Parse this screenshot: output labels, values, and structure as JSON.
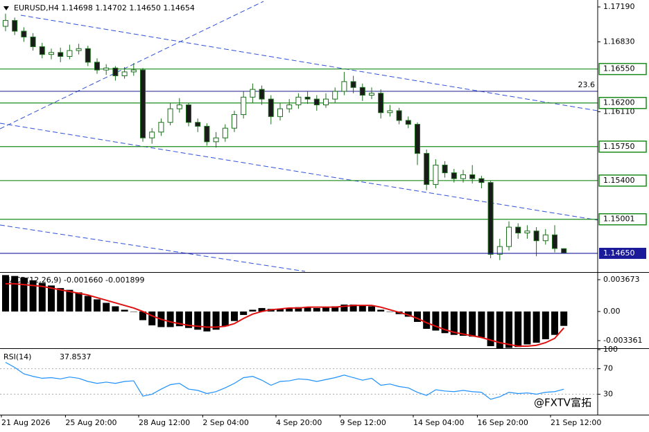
{
  "chart_data": [
    {
      "type": "candlestick",
      "title": "EURUSD,H4  1.14698 1.14702 1.14650 1.14654",
      "categories": [
        "21 Aug 2026",
        null,
        null,
        null,
        null,
        null,
        null,
        "25 Aug 20:00",
        null,
        null,
        null,
        null,
        null,
        null,
        null,
        "28 Aug 12:00",
        null,
        null,
        null,
        null,
        null,
        null,
        "2 Sep 04:00",
        null,
        null,
        null,
        null,
        null,
        null,
        null,
        "4 Sep 20:00",
        null,
        null,
        null,
        null,
        null,
        null,
        "9 Sep 12:00",
        null,
        null,
        null,
        null,
        null,
        null,
        null,
        "14 Sep 04:00",
        null,
        null,
        null,
        null,
        null,
        null,
        "16 Sep 20:00",
        null,
        null,
        null,
        null,
        null,
        null,
        null,
        "21 Sep 12:00",
        null
      ],
      "open": [
        1.1699,
        1.1705,
        1.1694,
        1.1688,
        1.1678,
        1.167,
        1.1672,
        1.1668,
        1.1674,
        1.1676,
        1.1662,
        1.1654,
        1.1656,
        1.1648,
        1.1652,
        1.1654,
        1.1584,
        1.159,
        1.16,
        1.1614,
        1.1618,
        1.16,
        1.1596,
        1.158,
        1.1584,
        1.1594,
        1.1608,
        1.1626,
        1.1634,
        1.1624,
        1.1606,
        1.1614,
        1.1618,
        1.1626,
        1.1624,
        1.1618,
        1.1624,
        1.1632,
        1.1642,
        1.1636,
        1.1628,
        1.163,
        1.161,
        1.1612,
        1.1602,
        1.1598,
        1.1568,
        1.1536,
        1.1556,
        1.1548,
        1.1542,
        1.1546,
        1.1542,
        1.1538,
        1.1464,
        1.1472,
        1.1492,
        1.1486,
        1.1488,
        1.1478,
        1.1484,
        1.14698
      ],
      "high": [
        1.1712,
        1.1708,
        1.1698,
        1.1692,
        1.1682,
        1.1676,
        1.1677,
        1.168,
        1.1681,
        1.1679,
        1.1666,
        1.166,
        1.1658,
        1.1657,
        1.1661,
        1.1656,
        1.1594,
        1.1604,
        1.162,
        1.1625,
        1.162,
        1.1604,
        1.1599,
        1.159,
        1.1598,
        1.1612,
        1.1632,
        1.164,
        1.1638,
        1.1628,
        1.162,
        1.1624,
        1.163,
        1.1632,
        1.1628,
        1.163,
        1.1636,
        1.1652,
        1.1648,
        1.164,
        1.1636,
        1.1634,
        1.1618,
        1.1615,
        1.1606,
        1.16,
        1.1572,
        1.1562,
        1.156,
        1.1552,
        1.1551,
        1.1556,
        1.1545,
        1.154,
        1.148,
        1.1498,
        1.1496,
        1.1494,
        1.1492,
        1.149,
        1.1494,
        1.14702
      ],
      "low": [
        1.1694,
        1.169,
        1.1683,
        1.1674,
        1.1666,
        1.1665,
        1.1662,
        1.1665,
        1.167,
        1.1658,
        1.165,
        1.1649,
        1.1643,
        1.1645,
        1.1648,
        1.158,
        1.1578,
        1.1586,
        1.1597,
        1.161,
        1.1596,
        1.159,
        1.1576,
        1.1574,
        1.158,
        1.159,
        1.1604,
        1.162,
        1.1618,
        1.1598,
        1.1602,
        1.161,
        1.1614,
        1.1619,
        1.1612,
        1.1615,
        1.162,
        1.1628,
        1.163,
        1.1622,
        1.1624,
        1.1604,
        1.1606,
        1.1598,
        1.1594,
        1.1556,
        1.153,
        1.1532,
        1.1543,
        1.1538,
        1.1538,
        1.1537,
        1.1532,
        1.146,
        1.1458,
        1.1468,
        1.148,
        1.148,
        1.1462,
        1.1474,
        1.1466,
        1.1465
      ],
      "close": [
        1.1705,
        1.1694,
        1.1688,
        1.1678,
        1.167,
        1.1672,
        1.1668,
        1.1674,
        1.1676,
        1.1662,
        1.1654,
        1.1656,
        1.1648,
        1.1652,
        1.1654,
        1.1584,
        1.159,
        1.16,
        1.1614,
        1.1618,
        1.16,
        1.1596,
        1.158,
        1.1584,
        1.1594,
        1.1608,
        1.1626,
        1.1634,
        1.1624,
        1.1606,
        1.1614,
        1.1618,
        1.1626,
        1.1624,
        1.1618,
        1.1624,
        1.1632,
        1.1642,
        1.1636,
        1.1628,
        1.163,
        1.161,
        1.1612,
        1.1602,
        1.1598,
        1.1568,
        1.1536,
        1.1556,
        1.1548,
        1.1542,
        1.1546,
        1.1542,
        1.1538,
        1.1464,
        1.1472,
        1.1492,
        1.1486,
        1.1488,
        1.1478,
        1.1484,
        1.147,
        1.14654
      ],
      "color_up": "#ffffff",
      "color_down": "#1a1a1a",
      "edge_color": "#1a6e1a",
      "ylim": [
        1.14464,
        1.17247
      ],
      "yticks": [
        {
          "value": 1.1719,
          "label": "1.17190"
        },
        {
          "value": 1.1683,
          "label": "1.16830"
        },
        {
          "value": 1.1611,
          "label": "1.16110"
        }
      ],
      "levels": [
        {
          "value": 1.1655,
          "label": "1.16550"
        },
        {
          "value": 1.162,
          "label": "1.16200"
        },
        {
          "value": 1.1575,
          "label": "1.15750"
        },
        {
          "value": 1.154,
          "label": "1.15400"
        },
        {
          "value": 1.15001,
          "label": "1.15001"
        }
      ],
      "level_color": "#1a8a1a",
      "bid": {
        "value": 1.1465,
        "label": "1.14650"
      },
      "bid_color": "#1a1a9a",
      "fib": {
        "value": 1.1632,
        "label": "23.6"
      }
    },
    {
      "type": "macd",
      "title": "MACD(12,26,9) -0.001660 -0.001899",
      "histogram": [
        0.0042,
        0.0041,
        0.0039,
        0.0036,
        0.0033,
        0.003,
        0.0027,
        0.0025,
        0.0022,
        0.0018,
        0.0014,
        0.001,
        0.0006,
        0.0002,
        0.0,
        -0.001,
        -0.0016,
        -0.0018,
        -0.0018,
        -0.0017,
        -0.0019,
        -0.0021,
        -0.0023,
        -0.0021,
        -0.0017,
        -0.0011,
        -0.0004,
        0.0002,
        0.0004,
        0.0003,
        0.0003,
        0.0004,
        0.0005,
        0.0005,
        0.0004,
        0.0005,
        0.0006,
        0.0008,
        0.0008,
        0.0007,
        0.0006,
        0.0002,
        0.0,
        -0.0003,
        -0.0006,
        -0.0012,
        -0.002,
        -0.0022,
        -0.0025,
        -0.0027,
        -0.0028,
        -0.0029,
        -0.003,
        -0.004,
        -0.0043,
        -0.0042,
        -0.0041,
        -0.0038,
        -0.0036,
        -0.0032,
        -0.0027,
        -0.00166
      ],
      "signal": [
        0.0032,
        0.0032,
        0.0031,
        0.003,
        0.0029,
        0.0027,
        0.0025,
        0.0023,
        0.0021,
        0.0019,
        0.0016,
        0.0013,
        0.001,
        0.0007,
        0.0004,
        0.0,
        -0.0005,
        -0.0009,
        -0.0012,
        -0.0014,
        -0.0016,
        -0.0017,
        -0.0018,
        -0.0018,
        -0.0017,
        -0.0014,
        -0.0008,
        -0.0003,
        0.0,
        0.0002,
        0.0003,
        0.0004,
        0.0004,
        0.0005,
        0.0005,
        0.0005,
        0.0005,
        0.0006,
        0.0007,
        0.0007,
        0.0007,
        0.0005,
        0.0002,
        -0.0001,
        -0.0004,
        -0.0008,
        -0.0013,
        -0.0017,
        -0.0021,
        -0.0024,
        -0.0026,
        -0.0028,
        -0.003,
        -0.0033,
        -0.0036,
        -0.0038,
        -0.004,
        -0.004,
        -0.0039,
        -0.0036,
        -0.0031,
        -0.001899
      ],
      "hist_color": "#000000",
      "signal_color": "#e01010",
      "ylim": [
        -0.00416,
        0.00439
      ],
      "yticks": [
        0.003673,
        {
          "value": 0,
          "label": "0.00"
        },
        -0.003361
      ]
    },
    {
      "type": "rsi",
      "title": "RSI(14)",
      "values": [
        80,
        72,
        62,
        58,
        55,
        56,
        54,
        57,
        55,
        50,
        47,
        49,
        47,
        50,
        51,
        27,
        30,
        38,
        45,
        47,
        38,
        36,
        31,
        34,
        40,
        47,
        56,
        58,
        52,
        44,
        50,
        51,
        54,
        53,
        50,
        53,
        56,
        60,
        56,
        52,
        55,
        44,
        46,
        42,
        40,
        33,
        28,
        37,
        35,
        34,
        36,
        34,
        33,
        22,
        26,
        33,
        31,
        32,
        30,
        33,
        34,
        37.8537
      ],
      "color": "#1e90ff",
      "ylim": [
        0,
        100
      ],
      "yticks": [
        100,
        70,
        30
      ],
      "levels": [
        70,
        30
      ]
    }
  ],
  "watermark": "@FXTV富拓"
}
